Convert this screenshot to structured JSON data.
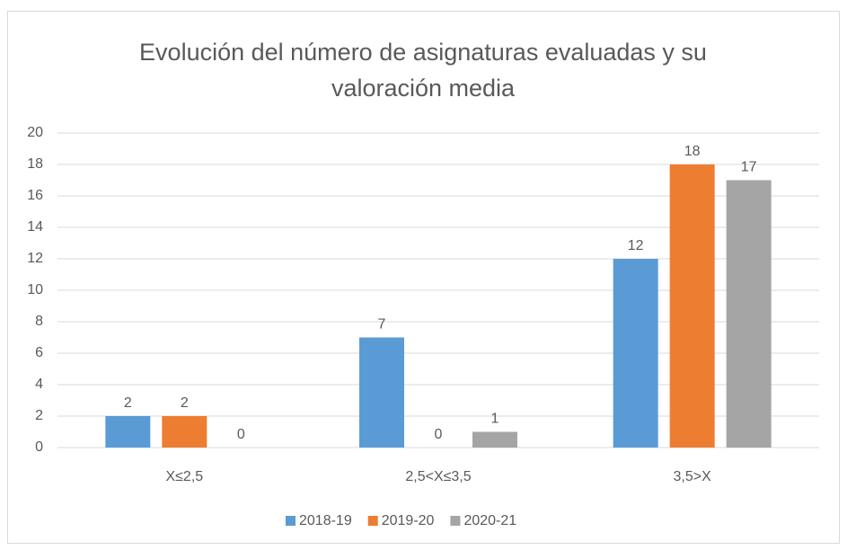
{
  "chart_data": {
    "type": "bar",
    "title": "Evolución del número de asignaturas evaluadas y su valoración media",
    "categories": [
      "X≤2,5",
      "2,5<X≤3,5",
      "3,5>X"
    ],
    "series": [
      {
        "name": "2018-19",
        "color": "#5b9bd5",
        "values": [
          2,
          7,
          12
        ]
      },
      {
        "name": "2019-20",
        "color": "#ed7d31",
        "values": [
          2,
          0,
          18
        ]
      },
      {
        "name": "2020-21",
        "color": "#a5a5a5",
        "values": [
          0,
          1,
          17
        ]
      }
    ],
    "ylim": [
      0,
      20
    ],
    "yticks": [
      0,
      2,
      4,
      6,
      8,
      10,
      12,
      14,
      16,
      18,
      20
    ],
    "grid": true,
    "legend": "bottom"
  }
}
